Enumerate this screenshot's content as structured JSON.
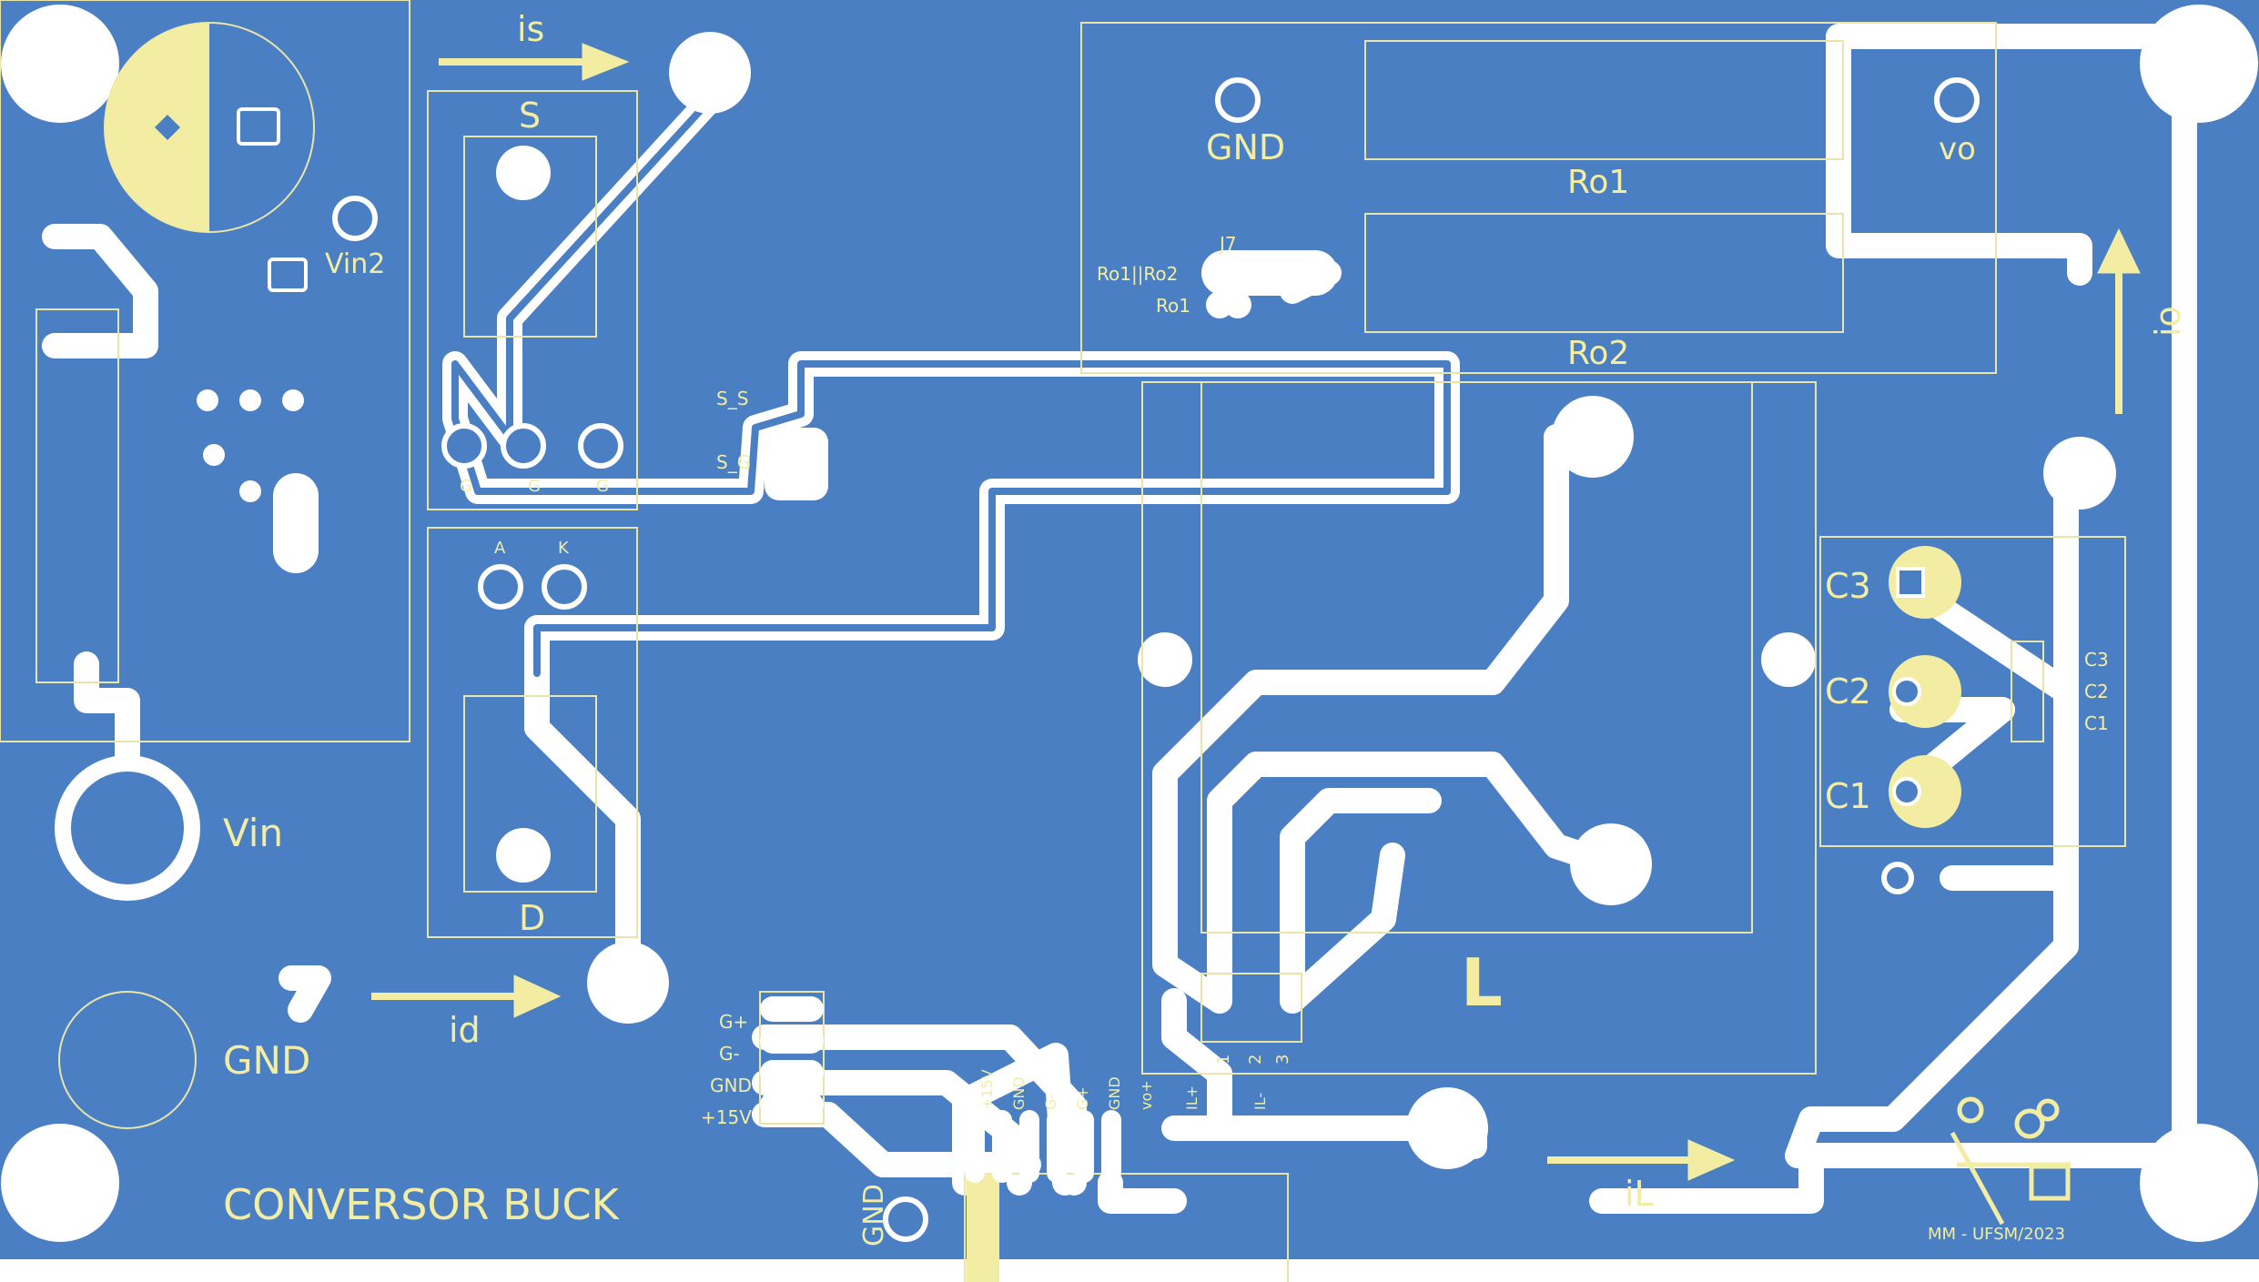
{
  "board": {
    "title": "CONVERSOR BUCK",
    "credit": "MM - UFSM/2023",
    "colors": {
      "copper": "#4a7fc4",
      "track": "#ffffff",
      "silk": "#f2eda2",
      "outline": "#e9e4a8"
    }
  },
  "labels": {
    "is": "is",
    "id": "id",
    "iL": "iL",
    "io": "io",
    "vin": "Vin",
    "vin2": "Vin2",
    "gnd_terminal": "GND",
    "gnd_top": "GND",
    "gnd_bottom": "GND",
    "vo": "vo",
    "switch": "S",
    "diode": "D",
    "inductor": "L",
    "ro1": "Ro1",
    "ro2": "Ro2",
    "j7": "J7",
    "ro1_par_ro2": "Ro1||Ro2",
    "ro1_small": "Ro1",
    "s_s": "S_S",
    "s_g": "S_G",
    "g_left": "G",
    "g_mid": "G",
    "g_right": "G",
    "anode": "A",
    "cathode": "K",
    "c3": "C3",
    "c2": "C2",
    "c1": "C1",
    "c3_small": "C3",
    "c2_small": "C2",
    "c1_small": "C1",
    "g_plus": "G+",
    "g_minus": "G-",
    "gnd_conn": "GND",
    "plus15v": "+15V",
    "pin_15v": "+15V",
    "pin_gnd": "GND",
    "pin_gm": "G-",
    "pin_gp": "G+",
    "pin_gnd2": "GND",
    "pin_vo": "vo+",
    "pin_il": "IL+",
    "pin_1": "1",
    "pin_2": "2",
    "pin_3": "3",
    "pin_il2": "IL-"
  },
  "icons": [
    "arrow-right-icon",
    "arrow-up-icon",
    "oshw-gear-icon"
  ]
}
